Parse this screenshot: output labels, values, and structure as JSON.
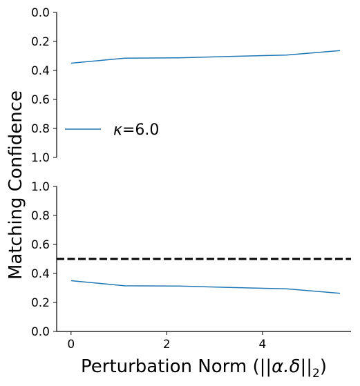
{
  "chart_data": [
    {
      "type": "line",
      "panel": "top",
      "y_inverted": true,
      "ylim": [
        0.0,
        1.0
      ],
      "y_ticks": [
        "0.0",
        "0.2",
        "0.4",
        "0.6",
        "0.8",
        "1.0"
      ],
      "xlim": [
        -0.3,
        5.85
      ],
      "x_ticks_shown": false,
      "grid": false,
      "series": [
        {
          "name": "κ=6.0",
          "color": "#1f77b4",
          "x": [
            0.0,
            1.12,
            2.25,
            3.37,
            4.5,
            5.62
          ],
          "y": [
            0.35,
            0.315,
            0.313,
            0.303,
            0.294,
            0.263
          ]
        }
      ],
      "legend": {
        "placement": "center-left",
        "entries": [
          "κ=6.0"
        ],
        "symbol": "κ",
        "text": "=6.0"
      }
    },
    {
      "type": "line",
      "panel": "bottom",
      "y_inverted": false,
      "ylim": [
        0.0,
        1.0
      ],
      "y_ticks": [
        "0.0",
        "0.2",
        "0.4",
        "0.6",
        "0.8",
        "1.0"
      ],
      "xlim": [
        -0.3,
        5.85
      ],
      "x_ticks": [
        "0",
        "2",
        "4"
      ],
      "x_tick_values": [
        0,
        2,
        4
      ],
      "grid": false,
      "series": [
        {
          "color": "#1f77b4",
          "x": [
            0.0,
            1.12,
            2.25,
            3.37,
            4.5,
            5.62
          ],
          "y": [
            0.35,
            0.315,
            0.313,
            0.303,
            0.294,
            0.263
          ]
        }
      ],
      "reference_line": {
        "y": 0.5,
        "style": "dashed",
        "color": "#000000"
      }
    }
  ],
  "labels": {
    "ylabel": "Matching Confidence",
    "xlabel_prefix": "Perturbation Norm (",
    "xlabel_math": "||α.δ||",
    "xlabel_sub": "2",
    "xlabel_suffix": ")"
  }
}
